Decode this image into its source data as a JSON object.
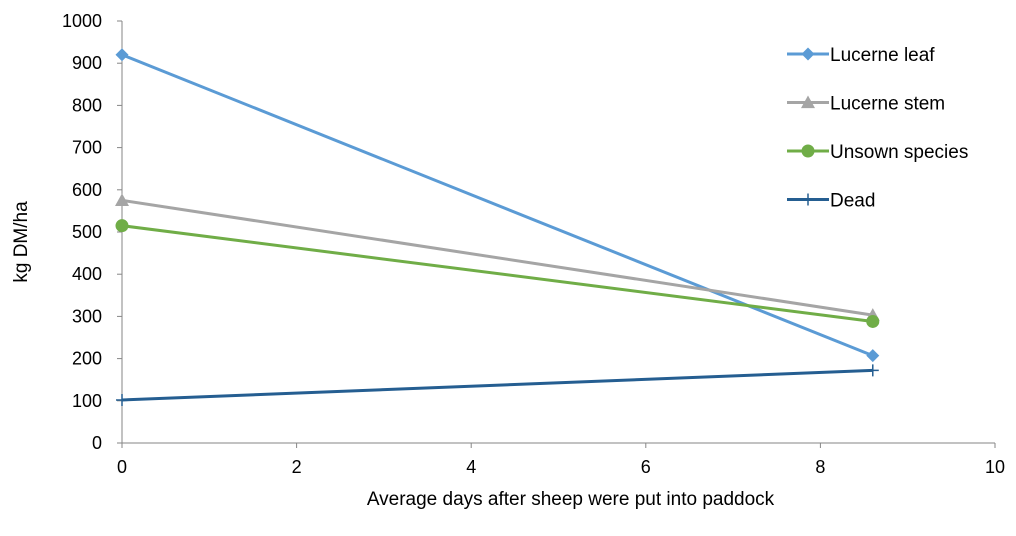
{
  "chart_data": {
    "type": "line",
    "title": "",
    "xlabel": "Average days after sheep were put into paddock",
    "ylabel": "kg DM/ha",
    "xlim": [
      0,
      10
    ],
    "ylim": [
      0,
      1000
    ],
    "x_ticks": [
      0,
      2,
      4,
      6,
      8,
      10
    ],
    "y_ticks": [
      0,
      100,
      200,
      300,
      400,
      500,
      600,
      700,
      800,
      900,
      1000
    ],
    "grid": false,
    "legend_position": "right",
    "series": [
      {
        "name": "Lucerne leaf",
        "color": "#5B9BD5",
        "marker": "diamond",
        "x": [
          0,
          8.6
        ],
        "y": [
          920,
          207
        ]
      },
      {
        "name": "Lucerne stem",
        "color": "#A5A5A5",
        "marker": "triangle",
        "x": [
          0,
          8.6
        ],
        "y": [
          575,
          303
        ]
      },
      {
        "name": "Unsown species",
        "color": "#70AD47",
        "marker": "circle",
        "x": [
          0,
          8.6
        ],
        "y": [
          515,
          288
        ]
      },
      {
        "name": "Dead",
        "color": "#255E91",
        "marker": "plus",
        "x": [
          0,
          8.6
        ],
        "y": [
          102,
          172
        ]
      }
    ]
  }
}
